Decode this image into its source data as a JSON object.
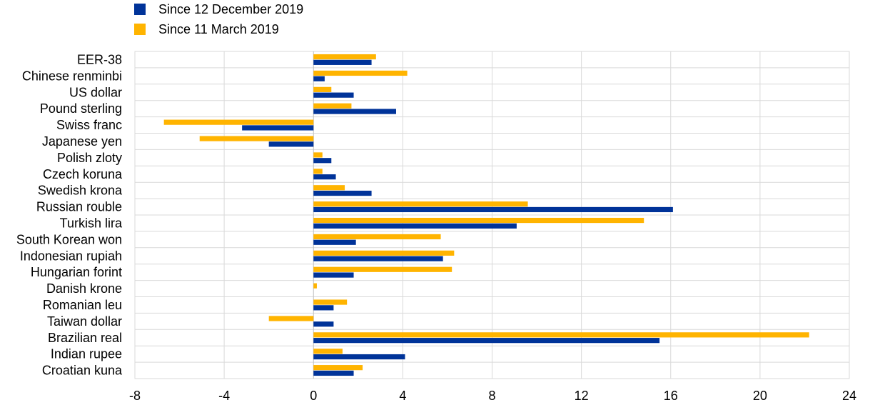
{
  "chart_data": {
    "type": "bar",
    "orientation": "horizontal",
    "title": "",
    "xlabel": "",
    "ylabel": "",
    "xlim": [
      -8,
      24
    ],
    "x_ticks": [
      -8,
      -4,
      0,
      4,
      8,
      12,
      16,
      20,
      24
    ],
    "grid": true,
    "legend_position": "top-left",
    "categories": [
      "EER-38",
      "Chinese renminbi",
      "US dollar",
      "Pound sterling",
      "Swiss franc",
      "Japanese yen",
      "Polish zloty",
      "Czech koruna",
      "Swedish krona",
      "Russian rouble",
      "Turkish lira",
      "South Korean won",
      "Indonesian rupiah",
      "Hungarian forint",
      "Danish krone",
      "Romanian leu",
      "Taiwan dollar",
      "Brazilian real",
      "Indian rupee",
      "Croatian kuna"
    ],
    "series": [
      {
        "name": "Since 12 December 2019",
        "color": "#003399",
        "values": [
          2.6,
          0.5,
          1.8,
          3.7,
          -3.2,
          -2.0,
          0.8,
          1.0,
          2.6,
          16.1,
          9.1,
          1.9,
          5.8,
          1.8,
          0.0,
          0.9,
          0.9,
          15.5,
          4.1,
          1.8
        ]
      },
      {
        "name": "Since 11 March 2019",
        "color": "#FFB400",
        "values": [
          2.8,
          4.2,
          0.8,
          1.7,
          -6.7,
          -5.1,
          0.4,
          0.4,
          1.4,
          9.6,
          14.8,
          5.7,
          6.3,
          6.2,
          0.15,
          1.5,
          -2.0,
          22.2,
          1.3,
          2.2
        ]
      }
    ]
  }
}
